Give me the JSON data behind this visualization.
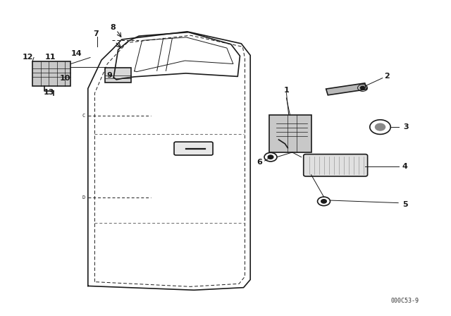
{
  "bg_color": "#ffffff",
  "line_color": "#1a1a1a",
  "fig_width": 6.4,
  "fig_height": 4.48,
  "watermark": "000C53-9"
}
